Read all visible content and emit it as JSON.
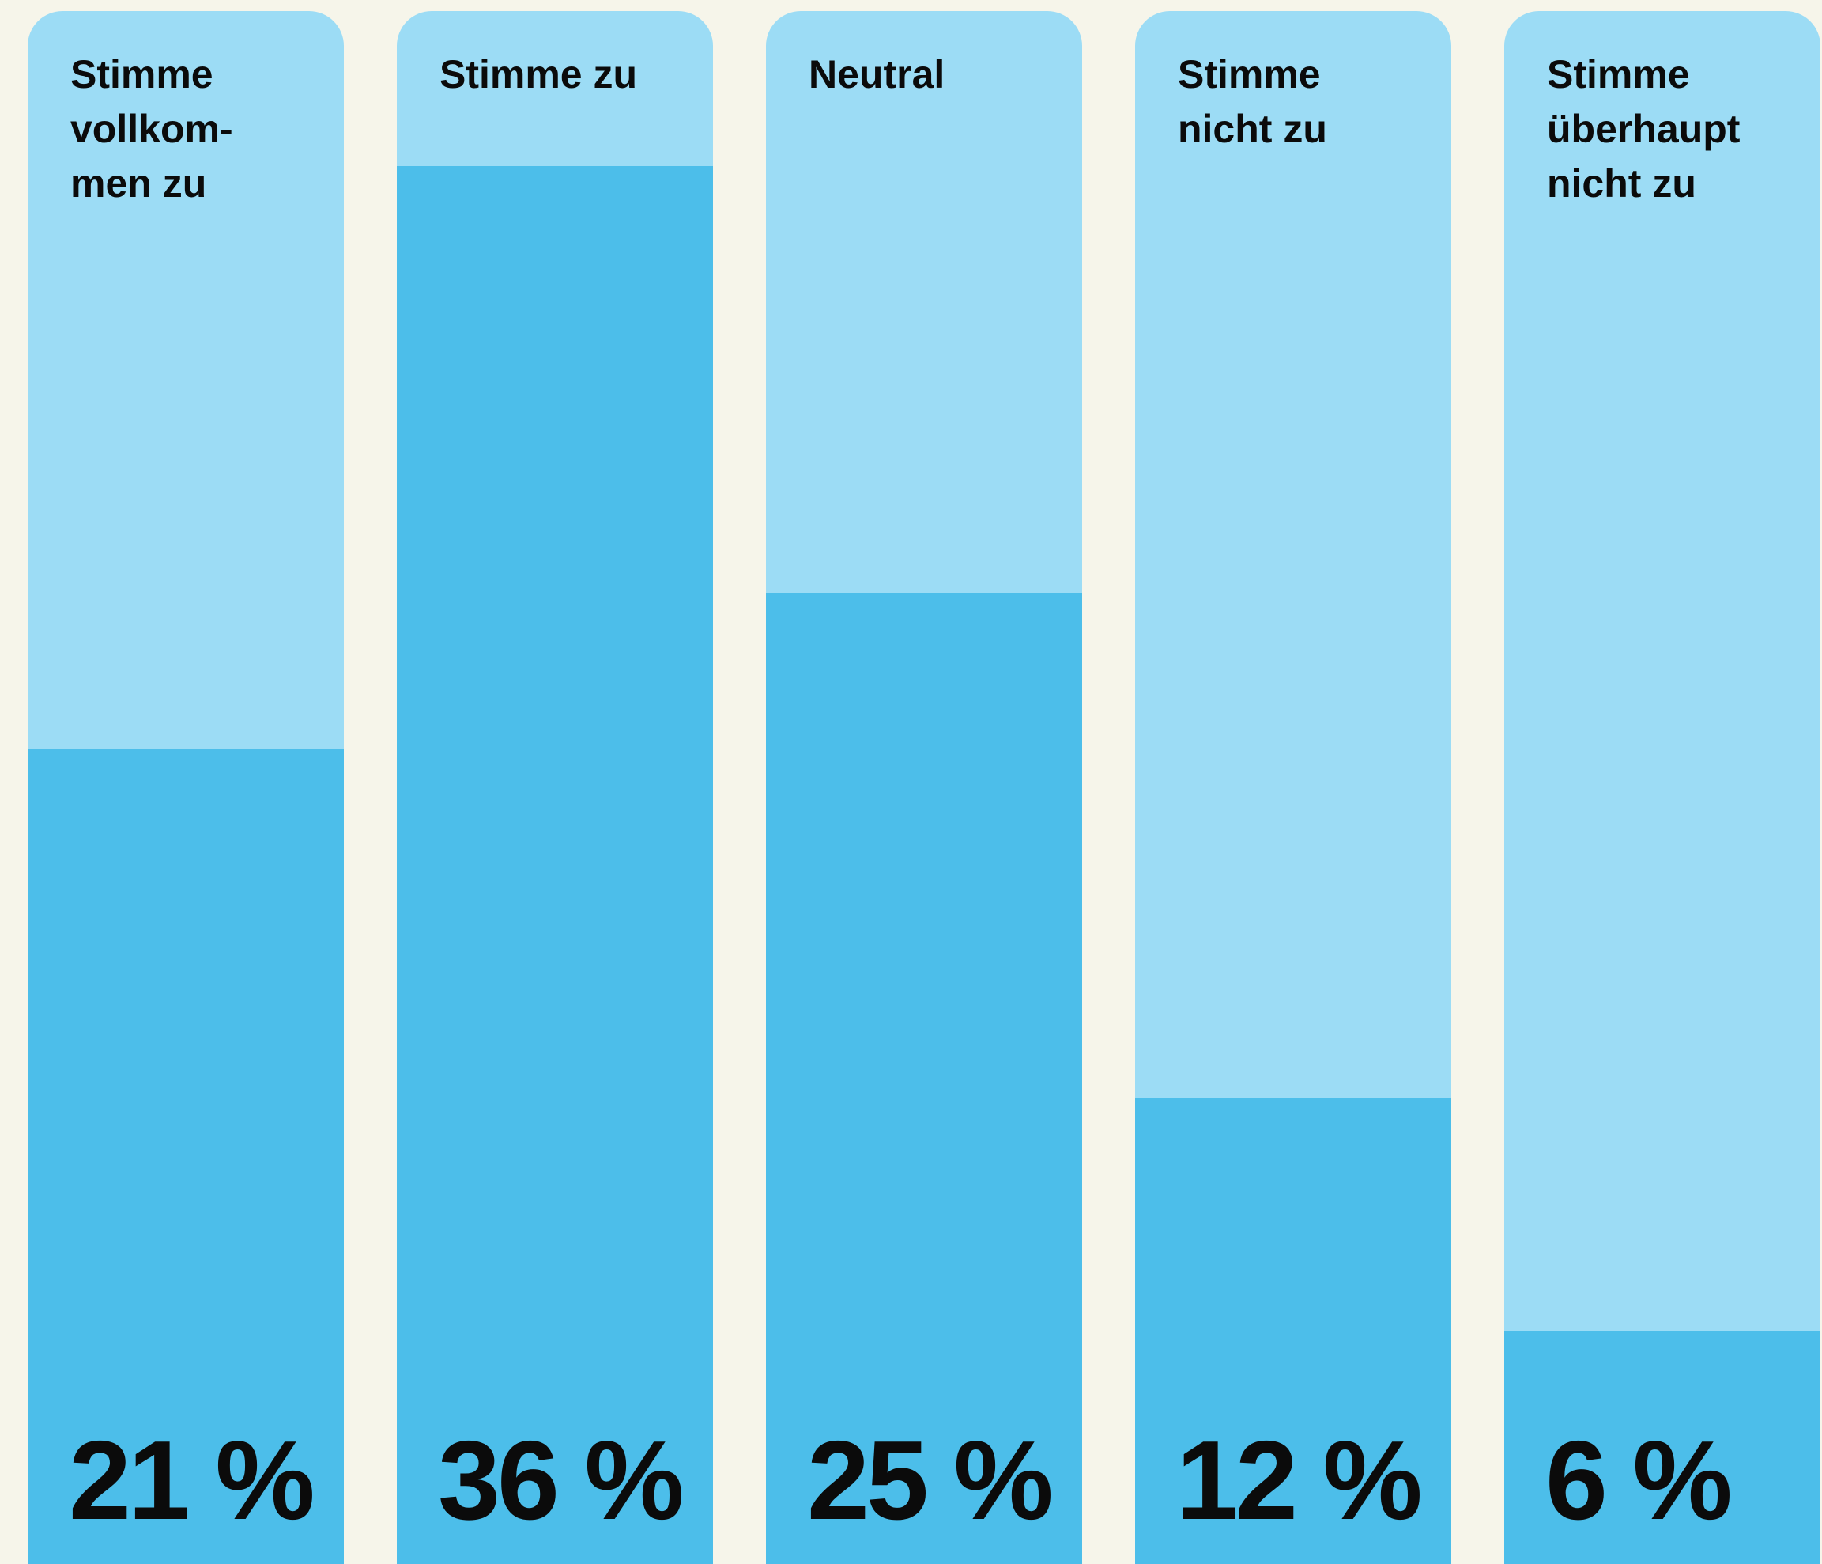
{
  "chart_data": {
    "type": "bar",
    "categories": [
      "Stimme\nvollkom-\nmen zu",
      "Stimme zu",
      "Neutral",
      "Stimme\nnicht zu",
      "Stimme\nüberhaupt\nnicht zu"
    ],
    "values": [
      21,
      36,
      25,
      12,
      6
    ],
    "value_labels": [
      "21 %",
      "36 %",
      "25 %",
      "12 %",
      "6 %"
    ],
    "unit": "%",
    "ylim": [
      0,
      40
    ],
    "title": "",
    "xlabel": "",
    "ylabel": "",
    "grid": false,
    "legend": "none",
    "colors": {
      "background": "#f6f5ea",
      "track": "#9cdcf5",
      "bar": "#4cbeea",
      "text": "#0b0b0b"
    }
  }
}
